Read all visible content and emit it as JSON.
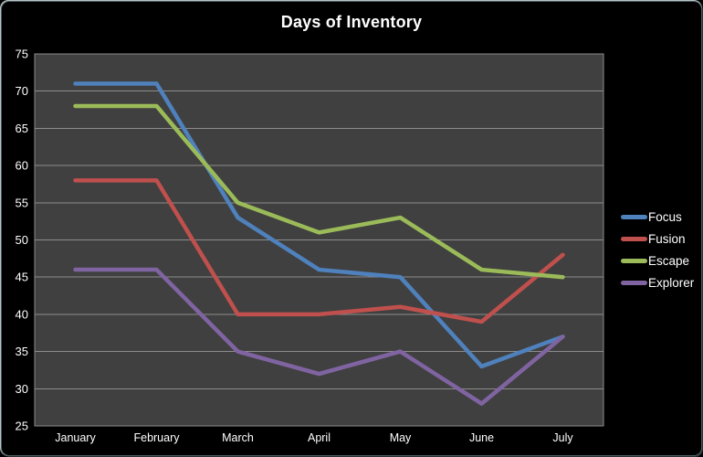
{
  "chart_data": {
    "type": "line",
    "title": "Days of Inventory",
    "categories": [
      "January",
      "February",
      "March",
      "April",
      "May",
      "June",
      "July"
    ],
    "series": [
      {
        "name": "Focus",
        "color": "#4F81BD",
        "values": [
          71,
          71,
          53,
          46,
          45,
          33,
          37
        ]
      },
      {
        "name": "Fusion",
        "color": "#C0504D",
        "values": [
          58,
          58,
          40,
          40,
          41,
          39,
          48
        ]
      },
      {
        "name": "Escape",
        "color": "#9BBB59",
        "values": [
          68,
          68,
          55,
          51,
          53,
          46,
          45
        ]
      },
      {
        "name": "Explorer",
        "color": "#8064A2",
        "values": [
          46,
          46,
          35,
          32,
          35,
          28,
          37
        ]
      }
    ],
    "ylim": [
      25,
      75
    ],
    "ytick_step": 5,
    "ytick_labels": [
      "25",
      "30",
      "35",
      "40",
      "45",
      "50",
      "55",
      "60",
      "65",
      "70",
      "75"
    ],
    "grid": "horizontal",
    "legend_position": "right"
  },
  "colors": {
    "background": "#000000",
    "plot_background": "#404040",
    "gridline": "#8C8C8C",
    "axis_text": "#FFFFFF",
    "title_text": "#FFFFFF"
  }
}
